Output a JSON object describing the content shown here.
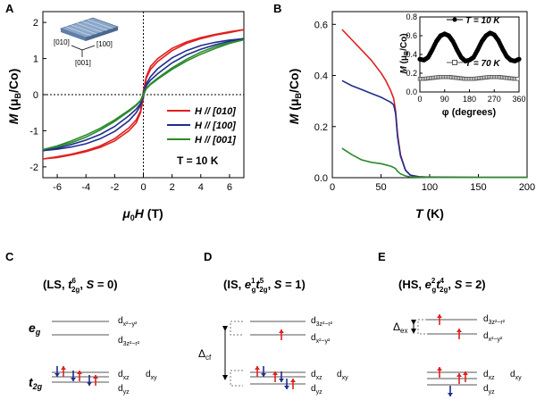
{
  "chart_data": [
    {
      "panel": "A",
      "type": "line",
      "xlabel": "μ0H (T)",
      "ylabel": "M (μB/Co)",
      "xlim": [
        -7,
        7
      ],
      "ylim": [
        -2.3,
        2.3
      ],
      "xticks": [
        "-6",
        "-4",
        "-2",
        "0",
        "2",
        "4",
        "6"
      ],
      "yticks": [
        "-2",
        "-1",
        "0",
        "1",
        "2"
      ],
      "legend_position": "center-right",
      "annotation": "T = 10 K",
      "inset_labels": [
        "[010]",
        "[100]",
        "[001]"
      ],
      "series": [
        {
          "name": "H // [010]",
          "color": "#e0201f",
          "x": [
            -7,
            -6,
            -5,
            -4,
            -3,
            -2,
            -1,
            -0.5,
            -0.2,
            0,
            0.2,
            0.5,
            1,
            2,
            3,
            4,
            5,
            6,
            7
          ],
          "y_up": [
            -1.78,
            -1.72,
            -1.65,
            -1.55,
            -1.42,
            -1.22,
            -0.92,
            -0.7,
            -0.45,
            0.1,
            0.5,
            0.78,
            1.0,
            1.28,
            1.46,
            1.58,
            1.67,
            1.74,
            1.8
          ],
          "y_down": [
            -1.78,
            -1.74,
            -1.67,
            -1.58,
            -1.46,
            -1.28,
            -1.0,
            -0.78,
            -0.5,
            -0.1,
            0.45,
            0.7,
            0.92,
            1.22,
            1.42,
            1.55,
            1.65,
            1.72,
            1.8
          ]
        },
        {
          "name": "H // [100]",
          "color": "#1f2d8f",
          "x": [
            -7,
            -6,
            -5,
            -4,
            -3,
            -2,
            -1,
            -0.5,
            -0.2,
            0,
            0.2,
            0.5,
            1,
            2,
            3,
            4,
            5,
            6,
            7
          ],
          "y_up": [
            -1.55,
            -1.48,
            -1.38,
            -1.26,
            -1.1,
            -0.88,
            -0.58,
            -0.4,
            -0.25,
            0.05,
            0.3,
            0.5,
            0.72,
            1.02,
            1.22,
            1.36,
            1.45,
            1.51,
            1.55
          ],
          "y_down": [
            -1.55,
            -1.51,
            -1.45,
            -1.36,
            -1.22,
            -1.02,
            -0.72,
            -0.5,
            -0.3,
            -0.05,
            0.25,
            0.4,
            0.58,
            0.88,
            1.1,
            1.26,
            1.38,
            1.48,
            1.55
          ]
        },
        {
          "name": "H // [001]",
          "color": "#2a8a2a",
          "x": [
            -7,
            -6,
            -5,
            -4,
            -3,
            -2,
            -1,
            -0.5,
            -0.2,
            0,
            0.2,
            0.5,
            1,
            2,
            3,
            4,
            5,
            6,
            7
          ],
          "y_up": [
            -1.52,
            -1.42,
            -1.28,
            -1.12,
            -0.93,
            -0.7,
            -0.43,
            -0.28,
            -0.16,
            0.02,
            0.18,
            0.3,
            0.46,
            0.74,
            0.98,
            1.18,
            1.33,
            1.44,
            1.52
          ],
          "y_down": [
            -1.52,
            -1.44,
            -1.33,
            -1.18,
            -0.98,
            -0.74,
            -0.46,
            -0.3,
            -0.18,
            -0.02,
            0.16,
            0.28,
            0.43,
            0.7,
            0.93,
            1.12,
            1.28,
            1.42,
            1.52
          ]
        }
      ]
    },
    {
      "panel": "B",
      "type": "line",
      "xlabel": "T (K)",
      "ylabel": "M (μB/Co)",
      "xlim": [
        0,
        200
      ],
      "ylim": [
        0,
        0.65
      ],
      "xticks": [
        "0",
        "50",
        "100",
        "150",
        "200"
      ],
      "yticks": [
        "0.0",
        "0.2",
        "0.4",
        "0.6"
      ],
      "series": [
        {
          "name": "red",
          "color": "#e0201f",
          "x": [
            10,
            20,
            30,
            40,
            50,
            55,
            60,
            63,
            65,
            67,
            70,
            75,
            80,
            90,
            100,
            150,
            200
          ],
          "y": [
            0.58,
            0.54,
            0.5,
            0.46,
            0.41,
            0.38,
            0.34,
            0.31,
            0.26,
            0.17,
            0.09,
            0.03,
            0.01,
            0.003,
            0.002,
            0.001,
            0.001
          ]
        },
        {
          "name": "blue",
          "color": "#1f2d8f",
          "x": [
            10,
            20,
            30,
            40,
            50,
            55,
            60,
            63,
            65,
            67,
            70,
            75,
            80,
            90,
            100,
            150,
            200
          ],
          "y": [
            0.38,
            0.36,
            0.345,
            0.33,
            0.315,
            0.305,
            0.295,
            0.285,
            0.25,
            0.16,
            0.085,
            0.03,
            0.01,
            0.003,
            0.002,
            0.001,
            0.001
          ]
        },
        {
          "name": "green",
          "color": "#2a8a2a",
          "x": [
            10,
            20,
            30,
            40,
            50,
            55,
            60,
            63,
            65,
            67,
            70,
            75,
            80,
            90,
            100,
            150,
            200
          ],
          "y": [
            0.115,
            0.09,
            0.07,
            0.06,
            0.055,
            0.05,
            0.045,
            0.04,
            0.035,
            0.025,
            0.015,
            0.007,
            0.003,
            0.002,
            0.001,
            0.001,
            0.001
          ]
        }
      ],
      "inset": {
        "type": "scatter",
        "xlabel": "φ (degrees)",
        "ylabel": "M (μB/Co)",
        "xlim": [
          0,
          360
        ],
        "ylim": [
          0,
          0.8
        ],
        "xticks": [
          "0",
          "90",
          "180",
          "270",
          "360"
        ],
        "yticks": [
          "0.0",
          "0.2",
          "0.4",
          "0.6",
          "0.8"
        ],
        "series": [
          {
            "name": "T = 10 K",
            "marker": "filled-circle",
            "color": "#000000",
            "x": [
              0,
              15,
              30,
              45,
              60,
              75,
              90,
              105,
              120,
              135,
              150,
              165,
              180,
              195,
              210,
              225,
              240,
              255,
              270,
              285,
              300,
              315,
              330,
              345,
              360
            ],
            "y": [
              0.35,
              0.34,
              0.37,
              0.45,
              0.54,
              0.6,
              0.62,
              0.6,
              0.54,
              0.45,
              0.37,
              0.33,
              0.34,
              0.37,
              0.45,
              0.54,
              0.6,
              0.63,
              0.61,
              0.55,
              0.46,
              0.38,
              0.34,
              0.33,
              0.35
            ]
          },
          {
            "name": "T = 70 K",
            "marker": "open-square",
            "color": "#555555",
            "x": [
              0,
              15,
              30,
              45,
              60,
              75,
              90,
              105,
              120,
              135,
              150,
              165,
              180,
              195,
              210,
              225,
              240,
              255,
              270,
              285,
              300,
              315,
              330,
              345,
              360
            ],
            "y": [
              0.14,
              0.14,
              0.145,
              0.15,
              0.155,
              0.16,
              0.16,
              0.16,
              0.155,
              0.15,
              0.145,
              0.14,
              0.14,
              0.14,
              0.145,
              0.15,
              0.155,
              0.16,
              0.16,
              0.16,
              0.155,
              0.15,
              0.145,
              0.14,
              0.14
            ]
          }
        ]
      }
    }
  ],
  "figure": {
    "panel_letters": [
      "A",
      "B",
      "C",
      "D",
      "E"
    ],
    "colors": {
      "red": "#e0201f",
      "blue": "#1f2d8f",
      "green": "#2a8a2a",
      "arrow_up": "#e0201f",
      "arrow_down": "#1f2d8f"
    },
    "diagrams": [
      {
        "panel": "C",
        "title": "(LS, t⁶₂g, S = 0)",
        "eg_label": "eg",
        "t2g_label": "t2g",
        "upper_orbitals": [
          "dx²−y²",
          "d3z²−r²"
        ],
        "lower_orbitals": [
          "dxz",
          "dxy",
          "dyz"
        ]
      },
      {
        "panel": "D",
        "title": "(IS, e¹g t⁵₂g, S = 1)",
        "gap_label": "Δcf",
        "upper_orbitals": [
          "d3z²−r²",
          "dx²−y²"
        ],
        "lower_orbitals": [
          "dxz",
          "dxy",
          "dyz"
        ]
      },
      {
        "panel": "E",
        "title": "(HS, e²g t⁴₂g, S = 2)",
        "gap_label": "Δex",
        "upper_orbitals": [
          "d3z²−r²",
          "dx²−y²"
        ],
        "lower_orbitals": [
          "dxz",
          "dxy",
          "dyz"
        ]
      }
    ]
  }
}
